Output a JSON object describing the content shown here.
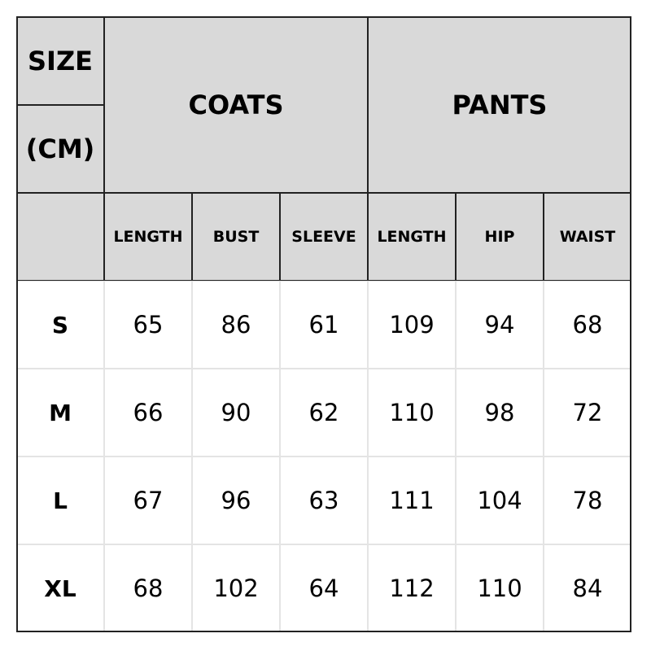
{
  "header": {
    "size_label": "SIZE",
    "unit_label": "(CM)",
    "coats": "COATS",
    "pants": "PANTS"
  },
  "columns": [
    "LENGTH",
    "BUST",
    "SLEEVE",
    "LENGTH",
    "HIP",
    "WAIST"
  ],
  "rows": [
    {
      "size": "S",
      "values": [
        "65",
        "86",
        "61",
        "109",
        "94",
        "68"
      ]
    },
    {
      "size": "M",
      "values": [
        "66",
        "90",
        "62",
        "110",
        "98",
        "72"
      ]
    },
    {
      "size": "L",
      "values": [
        "67",
        "96",
        "63",
        "111",
        "104",
        "78"
      ]
    },
    {
      "size": "XL",
      "values": [
        "68",
        "102",
        "64",
        "112",
        "110",
        "84"
      ]
    }
  ],
  "colors": {
    "header_bg": "#d9d9d9",
    "border": "#222222",
    "body_grid": "#e4e4e4"
  }
}
